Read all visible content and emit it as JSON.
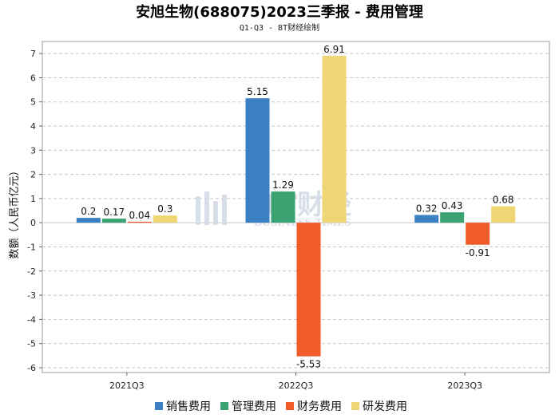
{
  "title": "安旭生物(688075)2023三季报 - 费用管理",
  "subtitle": "Q1-Q3 - BT财经绘制",
  "watermark": {
    "main": "BT财经",
    "sub": "BUSINESS TIMES"
  },
  "colors": {
    "sales": "#3a80c2",
    "admin": "#3ba272",
    "finance": "#f15a29",
    "rnd": "#f0d574",
    "grid": "#c8c8c8",
    "frame": "#999999"
  },
  "chart_data": {
    "type": "bar",
    "title": "安旭生物(688075)2023三季报 - 费用管理",
    "subtitle": "Q1-Q3 - BT财经绘制",
    "xlabel": "",
    "ylabel": "数额（人民币亿元）",
    "ylim": [
      -6.2,
      7.5
    ],
    "yticks": [
      -6,
      -5,
      -4,
      -3,
      -2,
      -1,
      0,
      1,
      2,
      3,
      4,
      5,
      6,
      7
    ],
    "grid": true,
    "legend": "bottom",
    "categories": [
      "2021Q3",
      "2022Q3",
      "2023Q3"
    ],
    "series": [
      {
        "name": "销售费用",
        "color": "#3a80c2",
        "values": [
          0.2,
          5.15,
          0.32
        ],
        "labels": [
          "0.2",
          "5.15",
          "0.32"
        ]
      },
      {
        "name": "管理费用",
        "color": "#3ba272",
        "values": [
          0.17,
          1.29,
          0.43
        ],
        "labels": [
          "0.17",
          "1.29",
          "0.43"
        ]
      },
      {
        "name": "财务费用",
        "color": "#f15a29",
        "values": [
          0.04,
          -5.53,
          -0.91
        ],
        "labels": [
          "0.04",
          "-5.53",
          "-0.91"
        ]
      },
      {
        "name": "研发费用",
        "color": "#f0d574",
        "values": [
          0.3,
          6.91,
          0.68
        ],
        "labels": [
          "0.3",
          "6.91",
          "0.68"
        ]
      }
    ]
  }
}
